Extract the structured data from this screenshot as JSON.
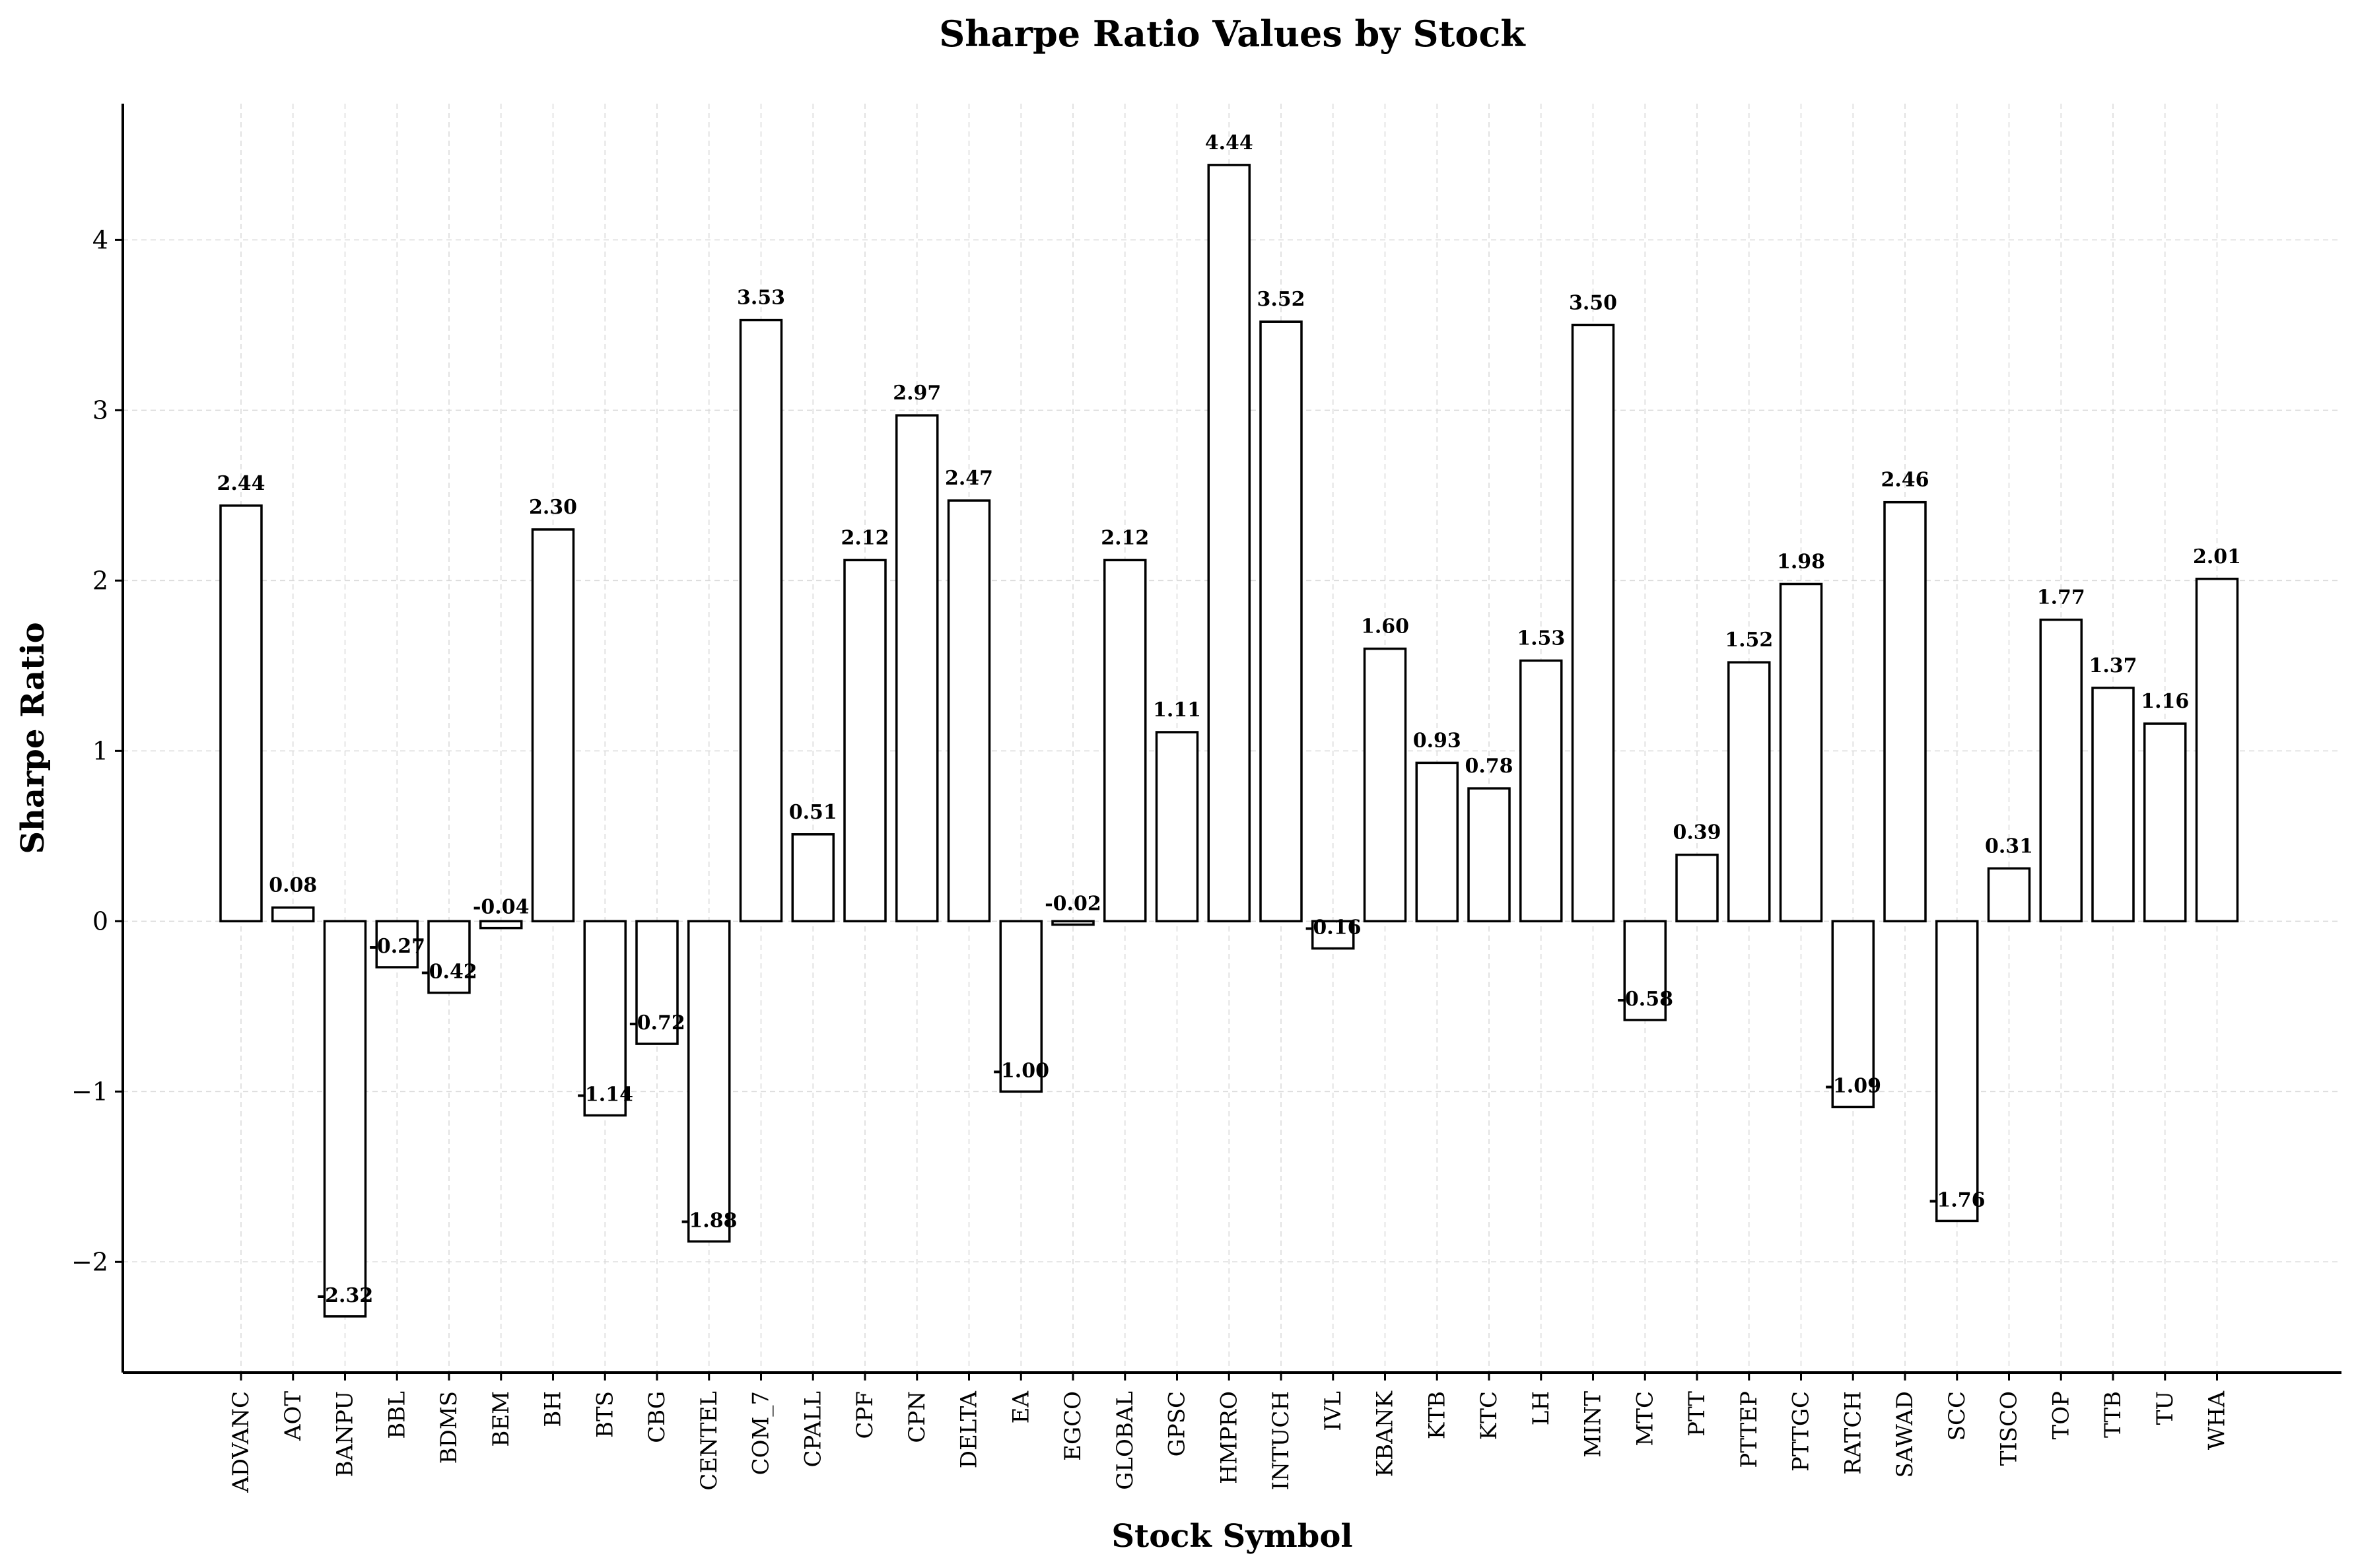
{
  "chart_data": {
    "type": "bar",
    "title": "Sharpe Ratio Values by Stock",
    "xlabel": "Stock Symbol",
    "ylabel": "Sharpe Ratio",
    "ylim": [
      -2.65,
      4.8
    ],
    "yticks": [
      -2,
      -1,
      0,
      1,
      2,
      3,
      4
    ],
    "ytick_labels": [
      "−2",
      "−1",
      "0",
      "1",
      "2",
      "3",
      "4"
    ],
    "grid": true,
    "legend": "none",
    "bar_color": "#ffffff",
    "edge_color": "#000000",
    "categories": [
      "ADVANC",
      "AOT",
      "BANPU",
      "BBL",
      "BDMS",
      "BEM",
      "BH",
      "BTS",
      "CBG",
      "CENTEL",
      "COM_7",
      "CPALL",
      "CPF",
      "CPN",
      "DELTA",
      "EA",
      "EGCO",
      "GLOBAL",
      "GPSC",
      "HMPRO",
      "INTUCH",
      "IVL",
      "KBANK",
      "KTB",
      "KTC",
      "LH",
      "MINT",
      "MTC",
      "PTT",
      "PTTEP",
      "PTTGC",
      "RATCH",
      "SAWAD",
      "SCC",
      "TISCO",
      "TOP",
      "TTB",
      "TU",
      "WHA"
    ],
    "values": [
      2.44,
      0.08,
      -2.32,
      -0.27,
      -0.42,
      -0.04,
      2.3,
      -1.14,
      -0.72,
      -1.88,
      3.53,
      0.51,
      2.12,
      2.97,
      2.47,
      -1.0,
      -0.02,
      2.12,
      1.11,
      4.44,
      3.52,
      -0.16,
      1.6,
      0.93,
      0.78,
      1.53,
      3.5,
      -0.58,
      0.39,
      1.52,
      1.98,
      -1.09,
      2.46,
      -1.76,
      0.31,
      1.77,
      1.37,
      1.16,
      2.01
    ],
    "data_labels": [
      "2.44",
      "0.08",
      "-2.32",
      "-0.27",
      "-0.42",
      "-0.04",
      "2.30",
      "-1.14",
      "-0.72",
      "-1.88",
      "3.53",
      "0.51",
      "2.12",
      "2.97",
      "2.47",
      "-1.00",
      "-0.02",
      "2.12",
      "1.11",
      "4.44",
      "3.52",
      "-0.16",
      "1.60",
      "0.93",
      "0.78",
      "1.53",
      "3.50",
      "-0.58",
      "0.39",
      "1.52",
      "1.98",
      "-1.09",
      "2.46",
      "-1.76",
      "0.31",
      "1.77",
      "1.37",
      "1.16",
      "2.01"
    ]
  }
}
